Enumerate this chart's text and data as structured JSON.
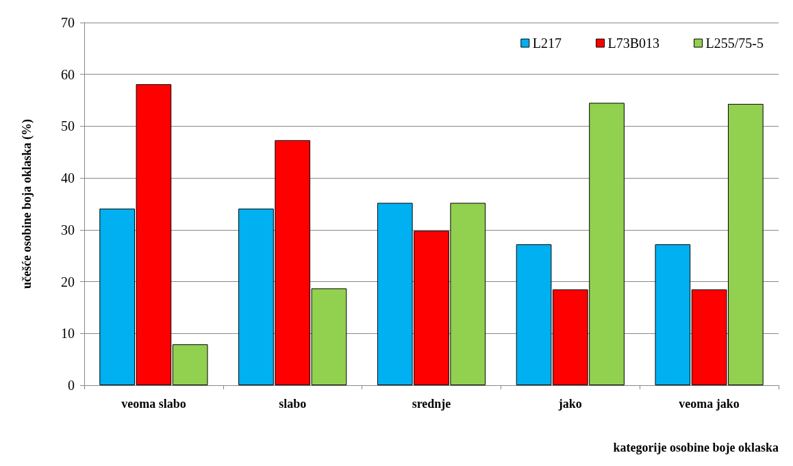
{
  "chart_data": {
    "type": "bar",
    "xlabel": "kategorije osobine boje oklaska",
    "ylabel": "učešće osobine boja oklaska (%)",
    "categories": [
      "veoma slabo",
      "slabo",
      "srednje",
      "jako",
      "veoma jako"
    ],
    "series": [
      {
        "name": "L217",
        "color": "#00b0f0",
        "values": [
          34.1,
          34.1,
          35.2,
          27.2,
          27.2
        ]
      },
      {
        "name": "L73B013",
        "color": "#ff0000",
        "values": [
          58.1,
          47.3,
          29.8,
          18.5,
          18.5
        ]
      },
      {
        "name": "L255/75-5",
        "color": "#92d050",
        "values": [
          7.9,
          18.7,
          35.2,
          54.5,
          54.3
        ]
      }
    ],
    "ylim": [
      0,
      70
    ],
    "yticks": [
      0,
      10,
      20,
      30,
      40,
      50,
      60,
      70
    ],
    "grid": "y",
    "legend": "top right"
  }
}
